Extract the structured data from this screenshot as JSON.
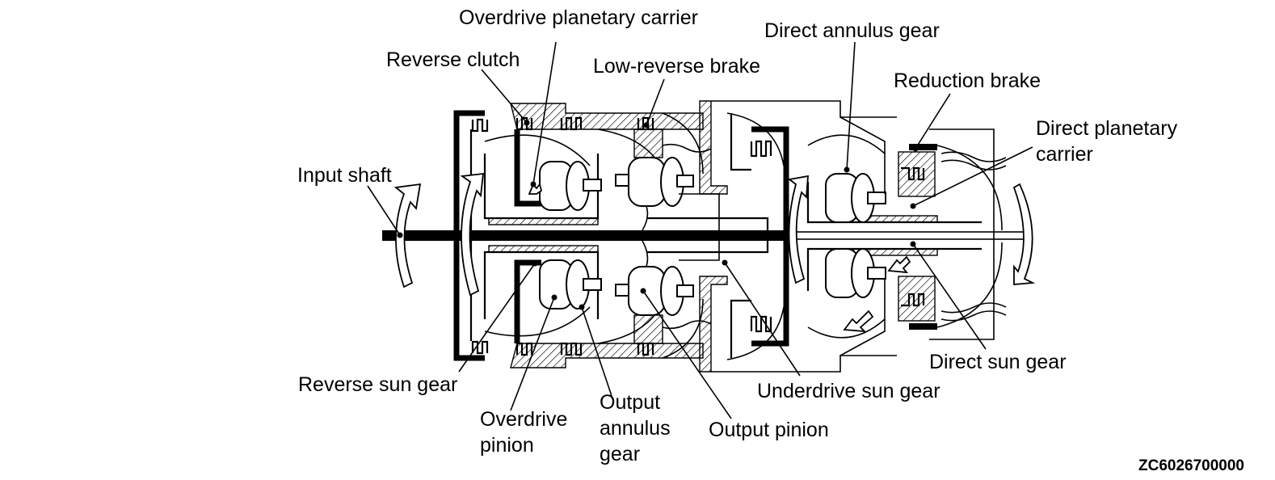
{
  "labels": {
    "overdrive_planetary_carrier": "Overdrive planetary carrier",
    "reverse_clutch": "Reverse clutch",
    "low_reverse_brake": "Low-reverse brake",
    "direct_annulus_gear": "Direct annulus gear",
    "reduction_brake": "Reduction brake",
    "direct_planetary_carrier_1": "Direct planetary",
    "direct_planetary_carrier_2": "carrier",
    "input_shaft": "Input shaft",
    "reverse_sun_gear": "Reverse sun gear",
    "overdrive_pinion_1": "Overdrive",
    "overdrive_pinion_2": "pinion",
    "output_annulus_gear_1": "Output",
    "output_annulus_gear_2": "annulus",
    "output_annulus_gear_3": "gear",
    "output_pinion": "Output pinion",
    "underdrive_sun_gear": "Underdrive sun gear",
    "direct_sun_gear": "Direct sun gear"
  },
  "figure_code": "ZC6026700000"
}
